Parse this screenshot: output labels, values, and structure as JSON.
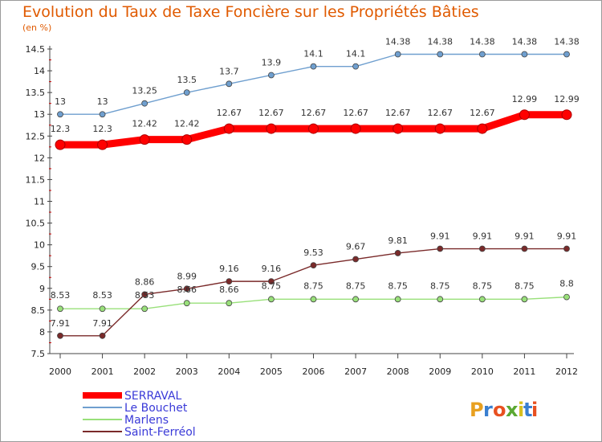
{
  "chart_data": {
    "type": "line",
    "title": "Evolution du Taux de Taxe Foncière sur les Propriétés Bâties",
    "unit_label": "(en %)",
    "x": [
      "2000",
      "2001",
      "2002",
      "2003",
      "2004",
      "2005",
      "2006",
      "2007",
      "2008",
      "2009",
      "2010",
      "2011",
      "2012"
    ],
    "y_ticks": [
      "7.5",
      "8",
      "8.5",
      "9",
      "9.5",
      "10",
      "10.5",
      "11",
      "11.5",
      "12",
      "12.5",
      "13",
      "13.5",
      "14",
      "14.5"
    ],
    "ylim": [
      7.5,
      14.5
    ],
    "grid": false,
    "legend_position": "bottom-left",
    "series": [
      {
        "name": "SERRAVAL",
        "color": "#ff0000",
        "values": [
          12.3,
          12.3,
          12.42,
          12.42,
          12.67,
          12.67,
          12.67,
          12.67,
          12.67,
          12.67,
          12.67,
          12.99,
          12.99
        ],
        "labels": [
          "12.3",
          "12.3",
          "12.42",
          "12.42",
          "12.67",
          "12.67",
          "12.67",
          "12.67",
          "12.67",
          "12.67",
          "12.67",
          "12.99",
          "12.99"
        ]
      },
      {
        "name": "Le Bouchet",
        "color": "#6f9fcf",
        "values": [
          13,
          13,
          13.25,
          13.5,
          13.7,
          13.9,
          14.1,
          14.1,
          14.38,
          14.38,
          14.38,
          14.38,
          14.38
        ],
        "labels": [
          "13",
          "13",
          "13.25",
          "13.5",
          "13.7",
          "13.9",
          "14.1",
          "14.1",
          "14.38",
          "14.38",
          "14.38",
          "14.38",
          "14.38"
        ]
      },
      {
        "name": "Marlens",
        "color": "#99e07a",
        "values": [
          8.53,
          8.53,
          8.53,
          8.66,
          8.66,
          8.75,
          8.75,
          8.75,
          8.75,
          8.75,
          8.75,
          8.75,
          8.8
        ],
        "labels": [
          "8.53",
          "8.53",
          "8.53",
          "8.66",
          "8.66",
          "8.75",
          "8.75",
          "8.75",
          "8.75",
          "8.75",
          "8.75",
          "8.75",
          "8.8"
        ]
      },
      {
        "name": "Saint-Ferréol",
        "color": "#7a2a2a",
        "values": [
          7.91,
          7.91,
          8.86,
          8.99,
          9.16,
          9.16,
          9.53,
          9.67,
          9.81,
          9.91,
          9.91,
          9.91,
          9.91
        ],
        "labels": [
          "7.91",
          "7.91",
          "8.86",
          "8.99",
          "9.16",
          "9.16",
          "9.53",
          "9.67",
          "9.81",
          "9.91",
          "9.91",
          "9.91",
          "9.91"
        ]
      }
    ]
  },
  "brand": {
    "letters": [
      "P",
      "r",
      "o",
      "x",
      "i",
      "t",
      "i"
    ],
    "colors": [
      "#e8a020",
      "#3a7fd0",
      "#e85020",
      "#5aa832",
      "#d8c020",
      "#3a7fd0",
      "#e85020"
    ]
  }
}
